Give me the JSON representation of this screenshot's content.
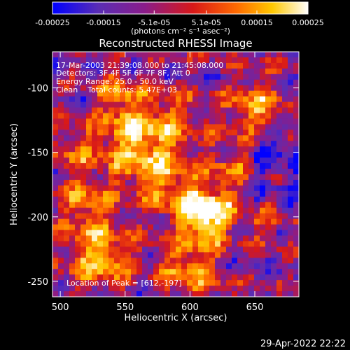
{
  "app": {
    "title": "Reconstructed RHESSI Image",
    "footer_timestamp": "29-Apr-2022 22:22"
  },
  "colorbar": {
    "tick_labels": [
      "-0.00025",
      "-0.00015",
      "-5.1e-05",
      "5.1e-05",
      "0.00015",
      "0.00025"
    ],
    "tick_values": [
      -0.00025,
      -0.00015,
      -5.1e-05,
      5.1e-05,
      0.00015,
      0.00025
    ],
    "units_label": "(photons cm⁻² s⁻¹ asec⁻²)",
    "range": [
      -0.00025,
      0.00025
    ],
    "colormap_stops": [
      "#0000ff",
      "#5a2db4",
      "#8a1c8a",
      "#d81818",
      "#ff6a00",
      "#ffc800",
      "#ffffff"
    ]
  },
  "info_block": {
    "time_range": "17-Mar-2003 21:39:08.000 to 21:45:08.000",
    "detectors": "Detectors: 3F 4F 5F 6F 7F 8F, Att 0",
    "energy_range": "Energy Range: 25.0 - 50.0 keV",
    "algorithm_counts": "Clean    Total counts: 5.47E+03",
    "peak_location": "Location of Peak = [612,-197]"
  },
  "chart_data": {
    "type": "heatmap",
    "title": "Reconstructed RHESSI Image",
    "xlabel": "Heliocentric X (arcsec)",
    "ylabel": "Heliocentric Y (arcsec)",
    "xlim": [
      494,
      684
    ],
    "ylim": [
      -262,
      -72
    ],
    "x_ticks": [
      500,
      550,
      600,
      650
    ],
    "y_ticks": [
      -100,
      -150,
      -200,
      -250
    ],
    "peak": {
      "x": 612,
      "y": -197
    }
  }
}
